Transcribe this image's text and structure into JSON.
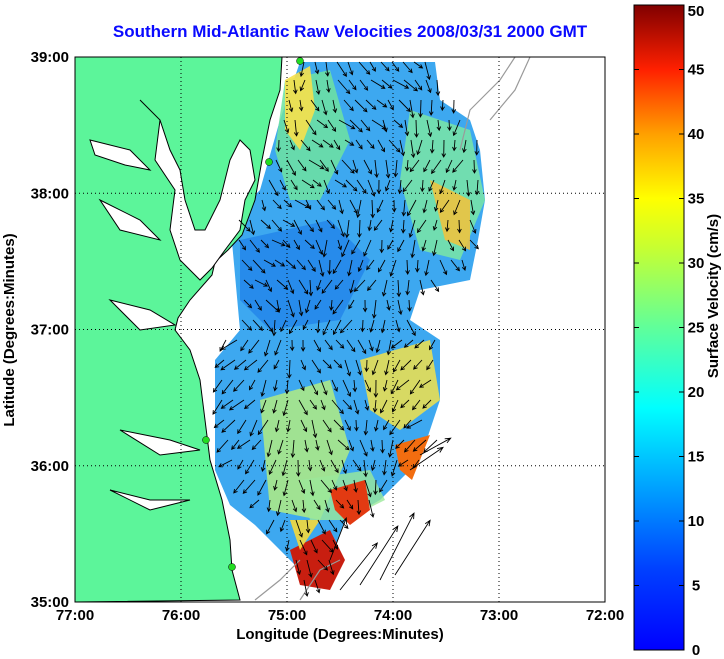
{
  "title": "Southern Mid-Atlantic Raw Velocities 2008/03/31 2000 GMT",
  "map": {
    "x_label": "Longitude (Degrees:Minutes)",
    "y_label": "Latitude (Degrees:Minutes)",
    "x_ticks": [
      "77:00",
      "76:00",
      "75:00",
      "74:00",
      "73:00",
      "72:00"
    ],
    "y_ticks": [
      "39:00",
      "38:00",
      "37:00",
      "36:00",
      "35:00"
    ],
    "x_range": [
      -77,
      -72
    ],
    "y_range": [
      35,
      39
    ],
    "grid": "dotted",
    "colors": {
      "land": "#5cf59a",
      "coast": "#000000",
      "vector": "#000000",
      "station": "#22dd22",
      "isobath": "#9a9a9a"
    }
  },
  "colorbar": {
    "label": "Surface Velocity (cm/s)",
    "ticks": [
      "50",
      "45",
      "40",
      "35",
      "30",
      "25",
      "20",
      "15",
      "10",
      "5",
      "0"
    ],
    "range": [
      0,
      50
    ],
    "colormap": "jet"
  }
}
